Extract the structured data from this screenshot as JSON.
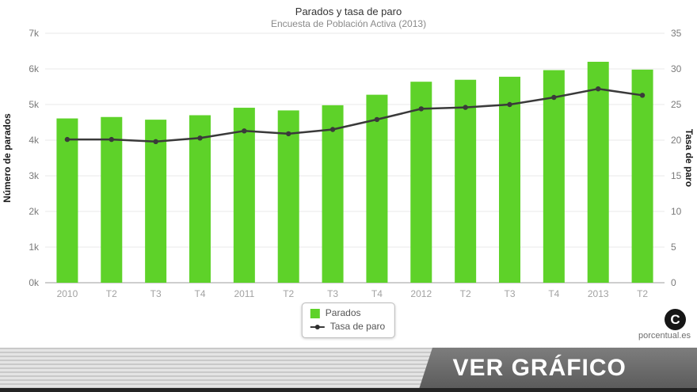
{
  "title": "Parados y tasa de paro",
  "subtitle": "Encuesta de Población Activa (2013)",
  "colors": {
    "bar": "#5ed229",
    "line": "#3a3a3a",
    "grid": "#e8e8e8",
    "axis_line": "#9e9e9e",
    "tick_label": "#7a7a7a",
    "x_label": "#a2a2a2",
    "banner_dark": "#5c5c5c"
  },
  "axes": {
    "left_title": "Número de parados",
    "right_title": "Tasa de paro",
    "left_ticks": [
      "0k",
      "1k",
      "2k",
      "3k",
      "4k",
      "5k",
      "6k",
      "7k"
    ],
    "right_ticks": [
      "0",
      "5",
      "10",
      "15",
      "20",
      "25",
      "30",
      "35"
    ]
  },
  "legend": {
    "parados": "Parados",
    "tasa": "Tasa de paro"
  },
  "footer": {
    "logo_glyph": "C",
    "brand": "porcentual.es",
    "cta": "VER GRÁFICO"
  },
  "chart_data": {
    "type": "bar",
    "title": "Parados y tasa de paro",
    "subtitle": "Encuesta de Población Activa (2013)",
    "categories": [
      "2010",
      "T2",
      "T3",
      "T4",
      "2011",
      "T2",
      "T3",
      "T4",
      "2012",
      "T2",
      "T3",
      "T4",
      "2013",
      "T2"
    ],
    "series": [
      {
        "name": "Parados",
        "type": "bar",
        "axis": "left",
        "values": [
          4610,
          4650,
          4575,
          4700,
          4910,
          4835,
          4980,
          5275,
          5640,
          5695,
          5780,
          5965,
          6200,
          5980
        ]
      },
      {
        "name": "Tasa de paro",
        "type": "line",
        "axis": "right",
        "values": [
          20.1,
          20.1,
          19.8,
          20.3,
          21.3,
          20.9,
          21.5,
          22.9,
          24.4,
          24.6,
          25.0,
          26.0,
          27.2,
          26.3
        ]
      }
    ],
    "left_axis": {
      "label": "Número de parados",
      "min": 0,
      "max": 7000
    },
    "right_axis": {
      "label": "Tasa de paro",
      "min": 0,
      "max": 35
    },
    "grid": "horizontal",
    "legend_position": "bottom-center"
  }
}
